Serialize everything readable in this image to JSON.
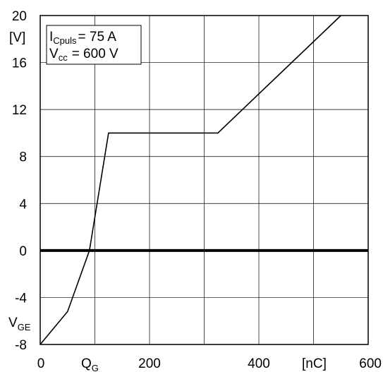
{
  "chart_data": {
    "type": "line",
    "title": "",
    "xlabel": "Q_G",
    "xlabel_main": "Q",
    "xlabel_sub": "G",
    "xunit": "[nC]",
    "ylabel": "V_GE",
    "ylabel_main": "V",
    "ylabel_sub": "GE",
    "yunit": "[V]",
    "xlim": [
      0,
      600
    ],
    "ylim": [
      -8,
      20
    ],
    "x_ticks": [
      0,
      200,
      400,
      600
    ],
    "x_tick_labels": [
      "0",
      "200",
      "400",
      "600"
    ],
    "y_ticks": [
      -8,
      -4,
      0,
      4,
      8,
      12,
      16,
      20
    ],
    "y_tick_labels": [
      "-8",
      "-4",
      "0",
      "4",
      "8",
      "12",
      "16",
      "20"
    ],
    "x_grid": [
      0,
      100,
      200,
      300,
      400,
      500,
      600
    ],
    "y_grid": [
      -8,
      -4,
      0,
      4,
      8,
      12,
      16,
      20
    ],
    "grid": true,
    "zero_line": true,
    "series": [
      {
        "x": [
          0,
          50,
          90,
          125,
          325,
          550
        ],
        "y": [
          -8,
          -5.2,
          0,
          10,
          10,
          20
        ],
        "color": "#000000"
      }
    ],
    "annotation": {
      "line1_main": "I",
      "line1_sub": "Cpuls",
      "line1_value": "= 75 A",
      "line2_main": "V",
      "line2_sub": "cc",
      "line2_value": "= 600 V"
    }
  }
}
